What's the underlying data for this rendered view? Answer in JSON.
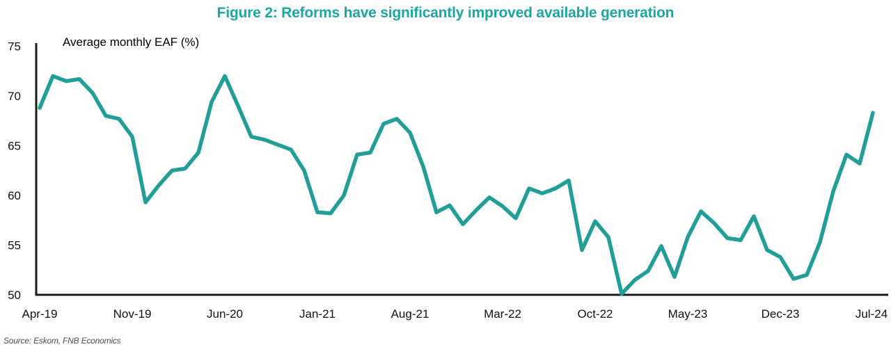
{
  "title": "Figure 2: Reforms have significantly improved available generation",
  "source": "Source: Eskom, FNB Economics",
  "colors": {
    "title_teal": "#1CA6A1",
    "line_teal": "#219E98",
    "axis_black": "#1a1a1a",
    "source_gray": "#4d4d4d"
  },
  "chart_data": {
    "type": "line",
    "title": "Figure 2: Reforms have significantly improved available generation",
    "annotation": "Average monthly EAF (%)",
    "ylabel": "Average monthly EAF (%)",
    "ylim": [
      50,
      75
    ],
    "y_ticks": [
      50,
      55,
      60,
      65,
      70,
      75
    ],
    "grid": false,
    "legend": false,
    "x_tick_labels": [
      "Apr-19",
      "Nov-19",
      "Jun-20",
      "Jan-21",
      "Aug-21",
      "Mar-22",
      "Oct-22",
      "May-23",
      "Dec-23",
      "Jul-24"
    ],
    "x": [
      "Apr-19",
      "May-19",
      "Jun-19",
      "Jul-19",
      "Aug-19",
      "Sep-19",
      "Oct-19",
      "Nov-19",
      "Dec-19",
      "Jan-20",
      "Feb-20",
      "Mar-20",
      "Apr-20",
      "May-20",
      "Jun-20",
      "Jul-20",
      "Aug-20",
      "Sep-20",
      "Oct-20",
      "Nov-20",
      "Dec-20",
      "Jan-21",
      "Feb-21",
      "Mar-21",
      "Apr-21",
      "May-21",
      "Jun-21",
      "Jul-21",
      "Aug-21",
      "Sep-21",
      "Oct-21",
      "Nov-21",
      "Dec-21",
      "Jan-22",
      "Feb-22",
      "Mar-22",
      "Apr-22",
      "May-22",
      "Jun-22",
      "Jul-22",
      "Aug-22",
      "Sep-22",
      "Oct-22",
      "Nov-22",
      "Dec-22",
      "Jan-23",
      "Feb-23",
      "Mar-23",
      "Apr-23",
      "May-23",
      "Jun-23",
      "Jul-23",
      "Aug-23",
      "Sep-23",
      "Oct-23",
      "Nov-23",
      "Dec-23",
      "Jan-24",
      "Feb-24",
      "Mar-24",
      "Apr-24",
      "May-24",
      "Jun-24",
      "Jul-24"
    ],
    "values": [
      68.8,
      72.0,
      71.5,
      71.7,
      70.3,
      68.0,
      67.7,
      65.9,
      59.3,
      61.0,
      62.5,
      62.7,
      64.3,
      69.4,
      72.0,
      69.0,
      65.9,
      65.6,
      65.1,
      64.6,
      62.5,
      58.3,
      58.2,
      60.0,
      64.1,
      64.3,
      67.2,
      67.7,
      66.3,
      62.9,
      58.3,
      59.0,
      57.1,
      58.5,
      59.8,
      58.9,
      57.7,
      60.7,
      60.2,
      60.7,
      61.5,
      54.5,
      57.4,
      55.8,
      50.1,
      51.5,
      52.4,
      54.9,
      51.8,
      55.8,
      58.4,
      57.2,
      55.7,
      55.5,
      57.9,
      54.5,
      53.8,
      51.6,
      52.0,
      55.3,
      60.4,
      64.1,
      63.2,
      68.3
    ]
  }
}
